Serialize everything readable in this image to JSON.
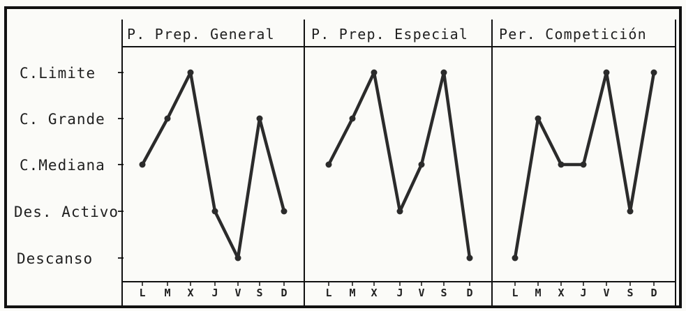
{
  "chart_data": {
    "type": "line",
    "y_levels": [
      "C.Limite",
      "C. Grande",
      "C.Mediana",
      "Des. Activo",
      "Descanso"
    ],
    "panels": [
      {
        "title": "P. Prep. General",
        "categories": [
          "L",
          "M",
          "X",
          "J",
          "V",
          "S",
          "D"
        ],
        "values": [
          "C.Mediana",
          "C. Grande",
          "C.Limite",
          "Des. Activo",
          "Descanso",
          "C. Grande",
          "Des. Activo"
        ]
      },
      {
        "title": "P. Prep. Especial",
        "categories": [
          "L",
          "M",
          "X",
          "J",
          "V",
          "S",
          "D"
        ],
        "values": [
          "C.Mediana",
          "C. Grande",
          "C.Limite",
          "Des. Activo",
          "C.Mediana",
          "C.Limite",
          "Descanso"
        ]
      },
      {
        "title": "Per. Competición",
        "categories": [
          "L",
          "M",
          "X",
          "J",
          "V",
          "S",
          "D"
        ],
        "values": [
          "Descanso",
          "C. Grande",
          "C.Mediana",
          "C.Mediana",
          "C.Limite",
          "Des. Activo",
          "C.Limite"
        ]
      }
    ],
    "legend": "none",
    "grid": false,
    "colors": {
      "line": "#2b2b2b",
      "frame": "#111111",
      "background": "#fbfbf8"
    }
  }
}
